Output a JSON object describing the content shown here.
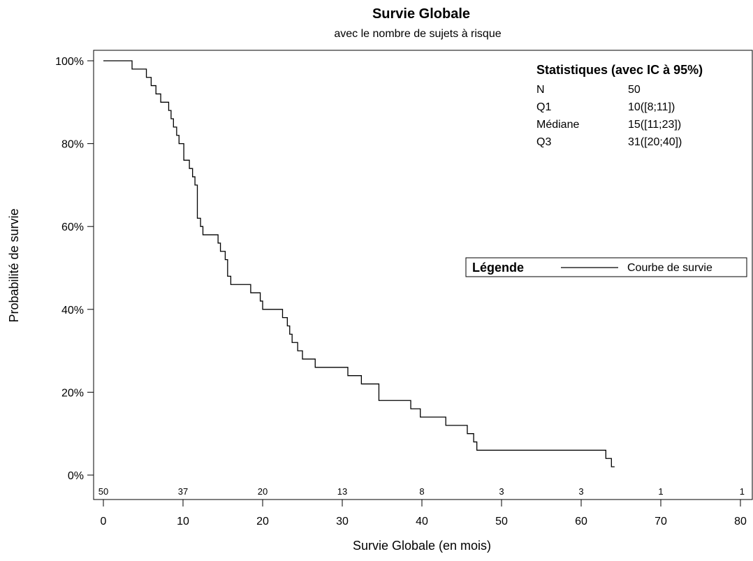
{
  "chart_data": {
    "type": "line",
    "title": "Survie Globale",
    "subtitle": "avec le nombre de sujets à risque",
    "xlabel": "Survie Globale (en mois)",
    "ylabel": "Probabilité de survie",
    "xlim": [
      0,
      80
    ],
    "ylim": [
      0,
      100
    ],
    "x_ticks": [
      "0",
      "10",
      "20",
      "30",
      "40",
      "50",
      "60",
      "70",
      "80"
    ],
    "y_ticks": [
      "0%",
      "20%",
      "40%",
      "60%",
      "80%",
      "100%"
    ],
    "grid": false,
    "series": [
      {
        "name": "Courbe de survie",
        "step": true,
        "x": [
          0,
          3.6,
          5.4,
          6.0,
          6.6,
          7.2,
          8.2,
          8.5,
          8.8,
          9.2,
          9.5,
          10.1,
          10.8,
          11.2,
          11.5,
          11.8,
          12.2,
          12.5,
          14.4,
          14.7,
          15.3,
          15.6,
          16.0,
          18.5,
          19.7,
          20.0,
          22.5,
          23.1,
          23.4,
          23.7,
          24.4,
          25.0,
          26.6,
          30.7,
          32.4,
          34.6,
          34.9,
          38.6,
          39.8,
          43.0,
          45.7,
          46.5,
          46.9,
          47.3,
          63.1,
          63.8,
          64.2
        ],
        "values": [
          100,
          98,
          96,
          94,
          92,
          90,
          88,
          86,
          84,
          82,
          80,
          76,
          74,
          72,
          70,
          62,
          60,
          58,
          56,
          54,
          52,
          48,
          46,
          44,
          42,
          40,
          38,
          36,
          34,
          32,
          30,
          28,
          26,
          24,
          22,
          18,
          18,
          16,
          14,
          12,
          10,
          8,
          6,
          6,
          4,
          2,
          2
        ]
      }
    ],
    "at_risk": {
      "x": [
        0,
        10,
        20,
        30,
        40,
        50,
        60,
        70,
        80
      ],
      "counts": [
        "50",
        "37",
        "20",
        "13",
        "8",
        "3",
        "3",
        "1",
        "1"
      ]
    },
    "statistics": {
      "heading": "Statistiques (avec IC à 95%)",
      "rows": [
        {
          "label": "N",
          "value": "50"
        },
        {
          "label": "Q1",
          "value": "10([8;11])"
        },
        {
          "label": "Médiane",
          "value": "15([11;23])"
        },
        {
          "label": "Q3",
          "value": "31([20;40])"
        }
      ]
    },
    "legend": {
      "title": "Légende",
      "entry": "Courbe de survie",
      "placement": "right"
    },
    "line_color": "#000000"
  }
}
